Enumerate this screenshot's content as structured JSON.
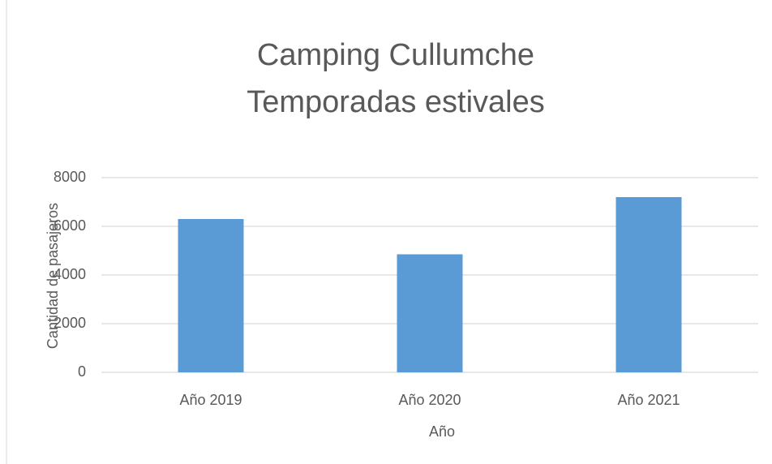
{
  "chart_data": {
    "type": "bar",
    "title": [
      "Camping Cullumche",
      "Temporadas estivales"
    ],
    "x_label": "Año",
    "y_label": "Cantidad de pasajeros",
    "categories": [
      "Año 2019",
      "Año 2020",
      "Año 2021"
    ],
    "values": [
      6300,
      4850,
      7200
    ],
    "color": "#5b9bd5",
    "ylim": [
      0,
      8000
    ],
    "yticks": [
      0,
      2000,
      4000,
      6000,
      8000
    ],
    "grid": true
  }
}
